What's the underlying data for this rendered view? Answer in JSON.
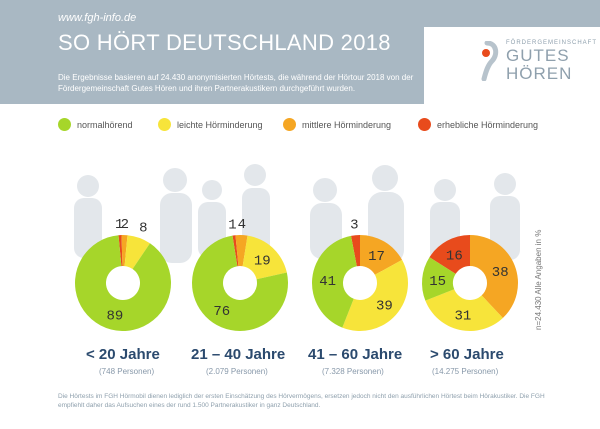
{
  "header": {
    "url": "www.fgh-info.de",
    "title": "SO HÖRT DEUTSCHLAND 2018",
    "subtitle": "Die Ergebnisse basieren auf 24.430 anonymisierten Hörtests, die während der Hörtour 2018 von der Fördergemeinschaft Gutes Hören und ihren Partnerakustikern durchgeführt wurden."
  },
  "logo": {
    "small": "FÖRDERGEMEINSCHAFT",
    "line1": "GUTES",
    "line2": "HÖREN"
  },
  "legend": [
    {
      "label": "normalhörend",
      "color": "#a6d62a"
    },
    {
      "label": "leichte Hörminderung",
      "color": "#f7e43a"
    },
    {
      "label": "mittlere Hörminderung",
      "color": "#f5a623"
    },
    {
      "label": "erhebliche Hörminderung",
      "color": "#e84b1c"
    }
  ],
  "side_note": "n=24.430   Alle Angaben in %",
  "footer": "Die Hörtests im FGH Hörmobil dienen lediglich der ersten Einschätzung des Hörvermögens, ersetzen jedoch nicht den ausführlichen Hörtest beim Hörakustiker. Die FGH empfiehlt daher das Aufsuchen eines der rund 1.500 Partnerakustiker in ganz Deutschland.",
  "chart_data": [
    {
      "type": "pie",
      "group": "< 20 Jahre",
      "persons": "(748 Personen)",
      "categories": [
        "normalhörend",
        "leichte Hörminderung",
        "mittlere Hörminderung",
        "erhebliche Hörminderung"
      ],
      "values": [
        89,
        8,
        2,
        1
      ],
      "labels": [
        "89",
        "8",
        "2",
        "1"
      ]
    },
    {
      "type": "pie",
      "group": "21 – 40 Jahre",
      "persons": "(2.079 Personen)",
      "categories": [
        "normalhörend",
        "leichte Hörminderung",
        "mittlere Hörminderung",
        "erhebliche Hörminderung"
      ],
      "values": [
        76,
        19,
        4,
        1
      ],
      "labels": [
        "76",
        "19",
        "4",
        "1"
      ]
    },
    {
      "type": "pie",
      "group": "41 – 60 Jahre",
      "persons": "(7.328 Personen)",
      "categories": [
        "normalhörend",
        "leichte Hörminderung",
        "mittlere Hörminderung",
        "erhebliche Hörminderung"
      ],
      "values": [
        41,
        39,
        17,
        3
      ],
      "labels": [
        "41",
        "39",
        "17",
        "3"
      ]
    },
    {
      "type": "pie",
      "group": "> 60 Jahre",
      "persons": "(14.275 Personen)",
      "categories": [
        "normalhörend",
        "leichte Hörminderung",
        "mittlere Hörminderung",
        "erhebliche Hörminderung"
      ],
      "values": [
        15,
        31,
        38,
        16
      ],
      "labels": [
        "15",
        "31",
        "38",
        "16"
      ]
    }
  ]
}
